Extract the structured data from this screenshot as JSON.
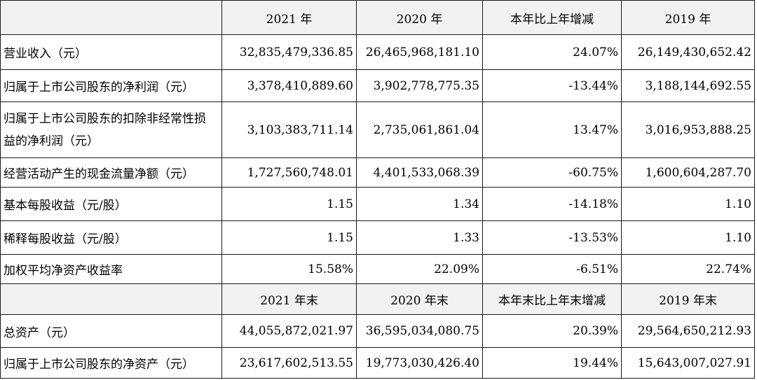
{
  "header_current": {
    "label": "",
    "y2021": "2021 年",
    "y2020": "2020 年",
    "change": "本年比上年增减",
    "y2019": "2019 年"
  },
  "header_end": {
    "label": "",
    "y2021": "2021 年末",
    "y2020": "2020 年末",
    "change": "本年末比上年末增减",
    "y2019": "2019 年末"
  },
  "rows_current": [
    {
      "label": "营业收入（元）",
      "y2021": "32,835,479,336.85",
      "y2020": "26,465,968,181.10",
      "change": "24.07%",
      "y2019": "26,149,430,652.42"
    },
    {
      "label": "归属于上市公司股东的净利润（元）",
      "y2021": "3,378,410,889.60",
      "y2020": "3,902,778,775.35",
      "change": "-13.44%",
      "y2019": "3,188,144,692.55"
    },
    {
      "label": "归属于上市公司股东的扣除非经常性损益的净利润（元）",
      "y2021": "3,103,383,711.14",
      "y2020": "2,735,061,861.04",
      "change": "13.47%",
      "y2019": "3,016,953,888.25"
    },
    {
      "label": "经营活动产生的现金流量净额（元）",
      "y2021": "1,727,560,748.01",
      "y2020": "4,401,533,068.39",
      "change": "-60.75%",
      "y2019": "1,600,604,287.70"
    },
    {
      "label": "基本每股收益（元/股）",
      "y2021": "1.15",
      "y2020": "1.34",
      "change": "-14.18%",
      "y2019": "1.10"
    },
    {
      "label": "稀释每股收益（元/股）",
      "y2021": "1.15",
      "y2020": "1.33",
      "change": "-13.53%",
      "y2019": "1.10"
    },
    {
      "label": "加权平均净资产收益率",
      "y2021": "15.58%",
      "y2020": "22.09%",
      "change": "-6.51%",
      "y2019": "22.74%"
    }
  ],
  "rows_end": [
    {
      "label": "总资产（元）",
      "y2021": "44,055,872,021.97",
      "y2020": "36,595,034,080.75",
      "change": "20.39%",
      "y2019": "29,564,650,212.93"
    },
    {
      "label": "归属于上市公司股东的净资产（元）",
      "y2021": "23,617,602,513.55",
      "y2020": "19,773,030,426.40",
      "change": "19.44%",
      "y2019": "15,643,007,027.91"
    }
  ]
}
